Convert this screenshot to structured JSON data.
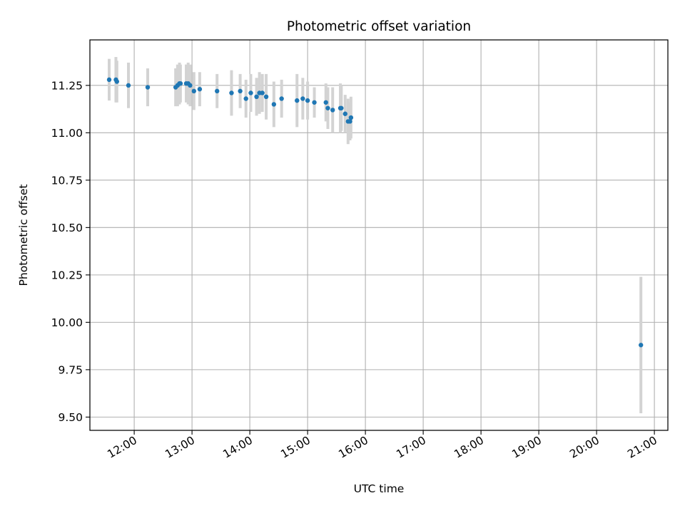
{
  "chart_data": {
    "type": "scatter",
    "title": "Photometric offset variation",
    "xlabel": "UTC time",
    "ylabel": "Photometric offset",
    "x_unit": "UTC hours",
    "xlim": [
      "11:14",
      "21:14"
    ],
    "ylim": [
      9.43,
      11.49
    ],
    "x_ticks": [
      "12:00",
      "13:00",
      "14:00",
      "15:00",
      "16:00",
      "17:00",
      "18:00",
      "19:00",
      "20:00",
      "21:00"
    ],
    "y_ticks": [
      "9.50",
      "9.75",
      "10.00",
      "10.25",
      "10.50",
      "10.75",
      "11.00",
      "11.25"
    ],
    "grid": true,
    "legend": "none",
    "colors": {
      "point": "#1f77b4",
      "errorbar": "#d3d3d3",
      "grid": "#b0b0b0"
    },
    "points": [
      {
        "x": "11:34",
        "y": 11.28,
        "err": 0.11
      },
      {
        "x": "11:41",
        "y": 11.28,
        "err": 0.12
      },
      {
        "x": "11:42",
        "y": 11.27,
        "err": 0.11
      },
      {
        "x": "11:54",
        "y": 11.25,
        "err": 0.12
      },
      {
        "x": "12:14",
        "y": 11.24,
        "err": 0.1
      },
      {
        "x": "12:43",
        "y": 11.24,
        "err": 0.1
      },
      {
        "x": "12:45",
        "y": 11.25,
        "err": 0.11
      },
      {
        "x": "12:47",
        "y": 11.26,
        "err": 0.11
      },
      {
        "x": "12:48",
        "y": 11.26,
        "err": 0.1
      },
      {
        "x": "12:54",
        "y": 11.26,
        "err": 0.1
      },
      {
        "x": "12:56",
        "y": 11.26,
        "err": 0.11
      },
      {
        "x": "12:58",
        "y": 11.25,
        "err": 0.11
      },
      {
        "x": "13:02",
        "y": 11.22,
        "err": 0.1
      },
      {
        "x": "13:08",
        "y": 11.23,
        "err": 0.09
      },
      {
        "x": "13:26",
        "y": 11.22,
        "err": 0.09
      },
      {
        "x": "13:41",
        "y": 11.21,
        "err": 0.12
      },
      {
        "x": "13:50",
        "y": 11.22,
        "err": 0.09
      },
      {
        "x": "13:56",
        "y": 11.18,
        "err": 0.1
      },
      {
        "x": "14:01",
        "y": 11.21,
        "err": 0.1
      },
      {
        "x": "14:07",
        "y": 11.19,
        "err": 0.1
      },
      {
        "x": "14:10",
        "y": 11.21,
        "err": 0.11
      },
      {
        "x": "14:13",
        "y": 11.21,
        "err": 0.1
      },
      {
        "x": "14:17",
        "y": 11.19,
        "err": 0.12
      },
      {
        "x": "14:25",
        "y": 11.15,
        "err": 0.12
      },
      {
        "x": "14:33",
        "y": 11.18,
        "err": 0.1
      },
      {
        "x": "14:49",
        "y": 11.17,
        "err": 0.14
      },
      {
        "x": "14:55",
        "y": 11.18,
        "err": 0.11
      },
      {
        "x": "15:00",
        "y": 11.17,
        "err": 0.1
      },
      {
        "x": "15:07",
        "y": 11.16,
        "err": 0.08
      },
      {
        "x": "15:19",
        "y": 11.16,
        "err": 0.1
      },
      {
        "x": "15:21",
        "y": 11.13,
        "err": 0.11
      },
      {
        "x": "15:26",
        "y": 11.12,
        "err": 0.12
      },
      {
        "x": "15:34",
        "y": 11.13,
        "err": 0.13
      },
      {
        "x": "15:35",
        "y": 11.13,
        "err": 0.12
      },
      {
        "x": "15:39",
        "y": 11.1,
        "err": 0.1
      },
      {
        "x": "15:42",
        "y": 11.06,
        "err": 0.12
      },
      {
        "x": "15:44",
        "y": 11.06,
        "err": 0.1
      },
      {
        "x": "15:45",
        "y": 11.08,
        "err": 0.11
      },
      {
        "x": "20:46",
        "y": 9.88,
        "err": 0.36
      }
    ]
  }
}
